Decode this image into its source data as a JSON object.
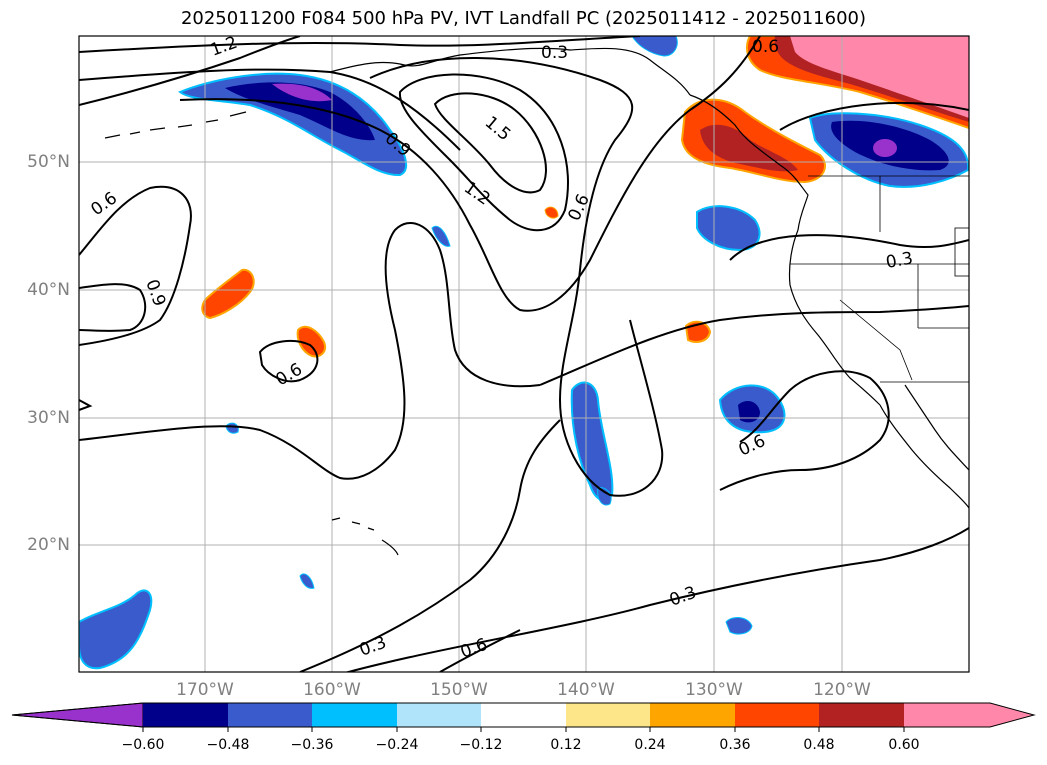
{
  "title": "2025011200 F084 500 hPa PV, IVT Landfall PC (2025011412 - 2025011600)",
  "lat_labels": [
    "50°N",
    "40°N",
    "30°N",
    "20°N"
  ],
  "lon_labels": [
    "170°W",
    "160°W",
    "150°W",
    "140°W",
    "130°W",
    "120°W"
  ],
  "contour_labels": [
    "1.2",
    "0.3",
    "0.6",
    "1.5",
    "0.9",
    "1.2",
    "0.6",
    "0.3",
    "0.6",
    "0.9",
    "0.6",
    "0.6",
    "0.3",
    "0.6",
    "0.3"
  ],
  "colorbar": {
    "ticks": [
      "−0.60",
      "−0.48",
      "−0.36",
      "−0.24",
      "−0.12",
      "0.12",
      "0.24",
      "0.36",
      "0.48",
      "0.60"
    ],
    "colors": [
      "#9932cc",
      "#00008b",
      "#3a5bcc",
      "#00bfff",
      "#afe4fb",
      "#ffffff",
      "#fde68a",
      "#ffa500",
      "#ff4500",
      "#b22222",
      "#ff88aa"
    ]
  }
}
